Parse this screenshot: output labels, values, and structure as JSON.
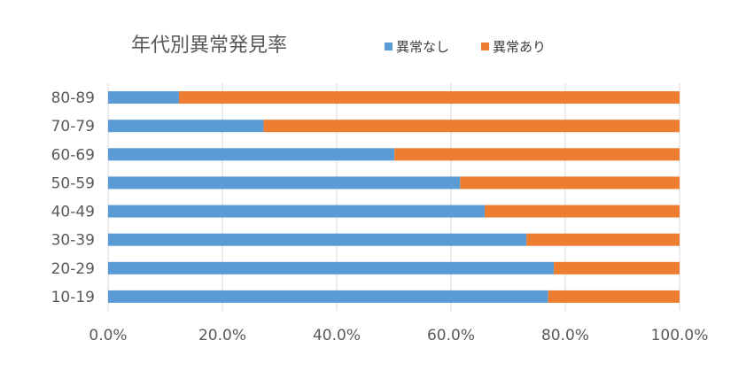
{
  "chart_data": {
    "type": "bar",
    "orientation": "horizontal",
    "stacked": "percent",
    "title": "年代別異常発見率",
    "categories": [
      "10-19",
      "20-29",
      "30-39",
      "40-49",
      "50-59",
      "60-69",
      "70-79",
      "80-89"
    ],
    "series": [
      {
        "name": "異常なし",
        "color": "#5b9bd5",
        "values": [
          77.0,
          78.0,
          73.2,
          65.9,
          61.6,
          50.1,
          27.2,
          12.4
        ]
      },
      {
        "name": "異常あり",
        "color": "#ed7d31",
        "values": [
          23.0,
          22.0,
          26.8,
          34.1,
          38.4,
          49.9,
          72.8,
          87.6
        ]
      }
    ],
    "xaxis": {
      "min": 0,
      "max": 100,
      "step": 20,
      "tick_labels": [
        "0.0%",
        "20.0%",
        "40.0%",
        "60.0%",
        "80.0%",
        "100.0%"
      ]
    },
    "xlabel": "",
    "ylabel": "",
    "grid": "vertical",
    "legend_position": "top"
  }
}
